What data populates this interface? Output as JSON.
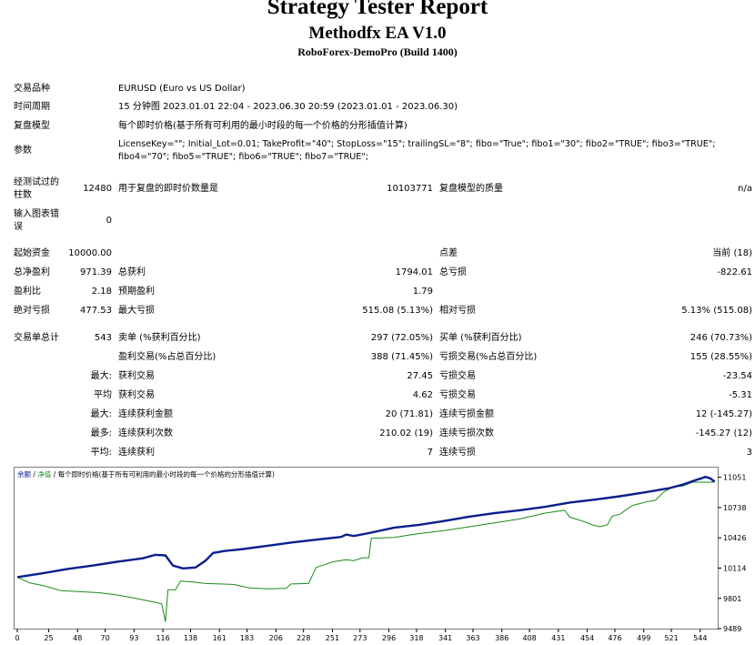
{
  "header": {
    "title": "Strategy Tester Report",
    "ea_name": "Methodfx EA V1.0",
    "server": "RoboForex-DemoPro (Build 1400)"
  },
  "settings": {
    "symbol_label": "交易品种",
    "symbol_value": "EURUSD (Euro vs US Dollar)",
    "period_label": "时间周期",
    "period_value": "15 分钟图 2023.01.01 22:04 - 2023.06.30 20:59 (2023.01.01 - 2023.06.30)",
    "model_label": "复盘模型",
    "model_value": "每个即时价格(基于所有可利用的最小时段的每一个价格的分形插值计算)",
    "params_label": "参数",
    "params_line1": "LicenseKey=\"\"; Initial_Lot=0.01; TakeProfit=\"40\"; StopLoss=\"15\"; trailingSL=\"8\"; fibo=\"True\"; fibo1=\"30\"; fibo2=\"TRUE\"; fibo3=\"TRUE\";",
    "params_line2": "fibo4=\"70\"; fibo5=\"TRUE\"; fibo6=\"TRUE\"; fibo7=\"TRUE\";"
  },
  "bars": {
    "label_l1": "经测试过的",
    "label_l2": "柱数",
    "value": "12480",
    "ticks_label": "用于复盘的即时价数量是",
    "ticks_value": "10103771",
    "quality_label": "复盘模型的质量",
    "quality_value": "n/a"
  },
  "mismatch": {
    "label_l1": "输入图表错",
    "label_l2": "误",
    "value": "0"
  },
  "stats": {
    "initial_label": "起始资金",
    "initial_value": "10000.00",
    "spread_label": "点差",
    "spread_value": "当前 (18)",
    "net_label": "总净盈利",
    "net_value": "971.39",
    "gross_profit_label": "总获利",
    "gross_profit_value": "1794.01",
    "gross_loss_label": "总亏损",
    "gross_loss_value": "-822.61",
    "pf_label": "盈利比",
    "pf_value": "2.18",
    "ep_label": "预期盈利",
    "ep_value": "1.79",
    "abs_dd_label": "绝对亏损",
    "abs_dd_value": "477.53",
    "max_dd_label": "最大亏损",
    "max_dd_value": "515.08 (5.13%)",
    "rel_dd_label": "相对亏损",
    "rel_dd_value": "5.13% (515.08)"
  },
  "trades": {
    "total_label": "交易单总计",
    "total_value": "543",
    "short_label": "卖单 (%获利百分比)",
    "short_value": "297 (72.05%)",
    "long_label": "买单 (%获利百分比)",
    "long_value": "246 (70.73%)",
    "profit_trades_label": "盈利交易(%占总百分比)",
    "profit_trades_value": "388 (71.45%)",
    "loss_trades_label": "亏损交易(%占总百分比)",
    "loss_trades_value": "155 (28.55%)",
    "max_prefix": "最大:",
    "max_profit_label": "获利交易",
    "max_profit_value": "27.45",
    "max_loss_label": "亏损交易",
    "max_loss_value": "-23.54",
    "avg_prefix": "平均",
    "avg_profit_label": "获利交易",
    "avg_profit_value": "4.62",
    "avg_loss_label": "亏损交易",
    "avg_loss_value": "-5.31",
    "max2_prefix": "最大:",
    "cons_wins_label": "连续获利金额",
    "cons_wins_value": "20 (71.81)",
    "cons_losses_label": "连续亏损金额",
    "cons_losses_value": "12 (-145.27)",
    "most_prefix": "最多:",
    "cons_profit_label": "连续获利次数",
    "cons_profit_value": "210.02 (19)",
    "cons_loss_label": "连续亏损次数",
    "cons_loss_value": "-145.27 (12)",
    "avg2_prefix": "平均:",
    "avg_wins_label": "连续获利",
    "avg_wins_value": "7",
    "avg_losses_label": "连续亏损",
    "avg_losses_value": "3"
  },
  "chart_legend": {
    "balance": "余额",
    "sep1": "/",
    "equity": "净值",
    "sep2": "/",
    "model": "每个即时价格(基于所有可利用的最小时段的每一个价格的分形插值计算)"
  },
  "chart_data": {
    "type": "line",
    "x_ticks": [
      "0",
      "25",
      "48",
      "70",
      "93",
      "116",
      "138",
      "161",
      "183",
      "206",
      "228",
      "251",
      "273",
      "296",
      "318",
      "341",
      "363",
      "386",
      "408",
      "431",
      "454",
      "476",
      "499",
      "521",
      "544"
    ],
    "y_ticks": [
      "11051",
      "10738",
      "10426",
      "10114",
      "9801",
      "9489"
    ],
    "xlim": [
      0,
      555
    ],
    "ylim": [
      9489,
      11160
    ],
    "series": [
      {
        "name": "余额",
        "color": "#0a1e8c",
        "points": [
          [
            0,
            10020
          ],
          [
            20,
            10060
          ],
          [
            40,
            10105
          ],
          [
            60,
            10140
          ],
          [
            80,
            10180
          ],
          [
            100,
            10215
          ],
          [
            110,
            10250
          ],
          [
            118,
            10245
          ],
          [
            124,
            10140
          ],
          [
            132,
            10110
          ],
          [
            142,
            10120
          ],
          [
            150,
            10190
          ],
          [
            156,
            10270
          ],
          [
            165,
            10290
          ],
          [
            180,
            10310
          ],
          [
            200,
            10345
          ],
          [
            220,
            10380
          ],
          [
            240,
            10410
          ],
          [
            258,
            10435
          ],
          [
            262,
            10460
          ],
          [
            268,
            10445
          ],
          [
            280,
            10475
          ],
          [
            300,
            10530
          ],
          [
            320,
            10560
          ],
          [
            340,
            10600
          ],
          [
            360,
            10645
          ],
          [
            380,
            10680
          ],
          [
            400,
            10710
          ],
          [
            420,
            10745
          ],
          [
            440,
            10790
          ],
          [
            460,
            10820
          ],
          [
            480,
            10855
          ],
          [
            500,
            10895
          ],
          [
            520,
            10940
          ],
          [
            530,
            10975
          ],
          [
            540,
            11020
          ],
          [
            545,
            11040
          ],
          [
            548,
            11055
          ],
          [
            552,
            11040
          ],
          [
            555,
            11010
          ],
          [
            555,
            11015
          ]
        ]
      },
      {
        "name": "净值",
        "color": "#1a8a1a",
        "points": [
          [
            0,
            10020
          ],
          [
            10,
            9960
          ],
          [
            20,
            9935
          ],
          [
            35,
            9880
          ],
          [
            50,
            9870
          ],
          [
            65,
            9860
          ],
          [
            80,
            9835
          ],
          [
            95,
            9800
          ],
          [
            110,
            9760
          ],
          [
            115,
            9745
          ],
          [
            118,
            9560
          ],
          [
            120,
            9890
          ],
          [
            126,
            9890
          ],
          [
            130,
            9980
          ],
          [
            140,
            9970
          ],
          [
            150,
            9955
          ],
          [
            162,
            9950
          ],
          [
            172,
            9945
          ],
          [
            185,
            9910
          ],
          [
            200,
            9900
          ],
          [
            214,
            9905
          ],
          [
            218,
            9950
          ],
          [
            232,
            9955
          ],
          [
            238,
            10120
          ],
          [
            252,
            10180
          ],
          [
            262,
            10200
          ],
          [
            268,
            10190
          ],
          [
            275,
            10220
          ],
          [
            280,
            10220
          ],
          [
            282,
            10420
          ],
          [
            300,
            10430
          ],
          [
            320,
            10470
          ],
          [
            340,
            10500
          ],
          [
            360,
            10540
          ],
          [
            380,
            10580
          ],
          [
            400,
            10620
          ],
          [
            420,
            10680
          ],
          [
            436,
            10710
          ],
          [
            440,
            10640
          ],
          [
            450,
            10600
          ],
          [
            458,
            10560
          ],
          [
            464,
            10540
          ],
          [
            470,
            10560
          ],
          [
            474,
            10650
          ],
          [
            480,
            10670
          ],
          [
            490,
            10760
          ],
          [
            496,
            10780
          ],
          [
            502,
            10800
          ],
          [
            508,
            10810
          ],
          [
            515,
            10900
          ],
          [
            522,
            10950
          ],
          [
            530,
            10960
          ],
          [
            538,
            11000
          ],
          [
            555,
            11000
          ]
        ]
      }
    ]
  }
}
